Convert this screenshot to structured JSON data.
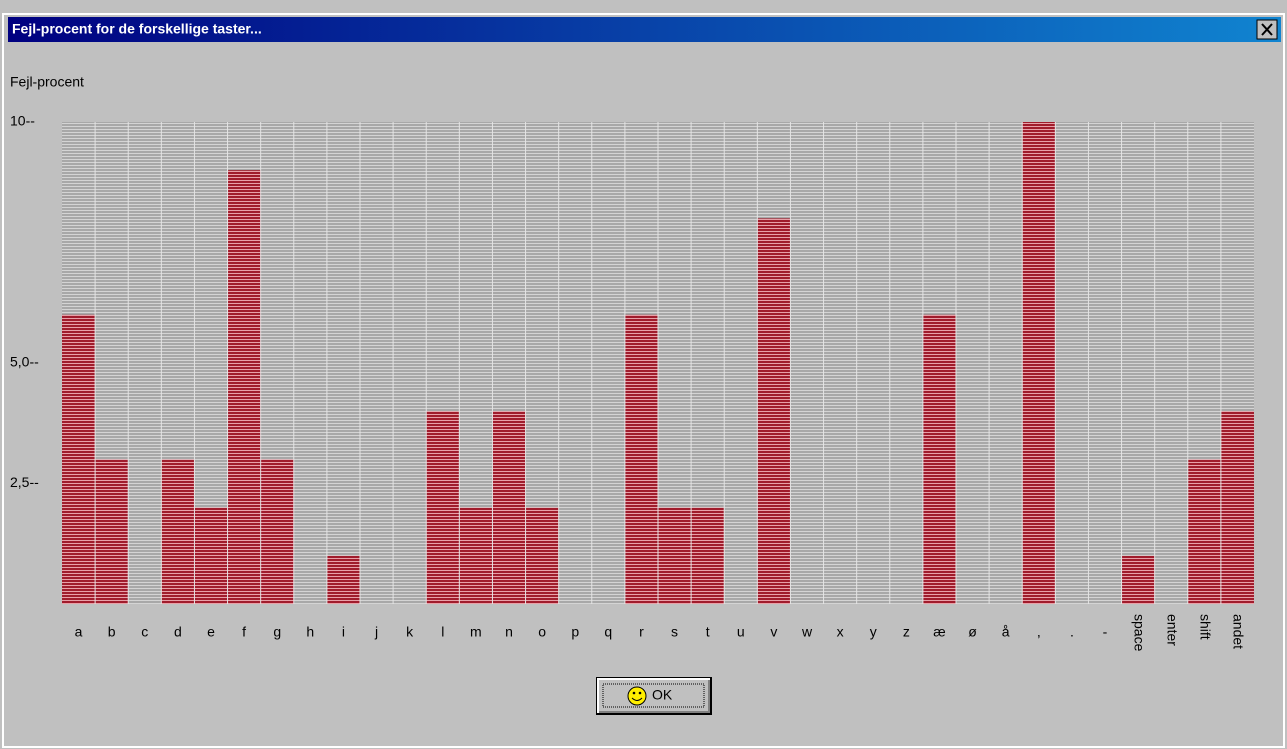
{
  "window": {
    "title": "Fejl-procent for de forskellige taster...",
    "ok_button": "OK"
  },
  "chart_data": {
    "type": "bar",
    "ylabel": "Fejl-procent",
    "categories": [
      "a",
      "b",
      "c",
      "d",
      "e",
      "f",
      "g",
      "h",
      "i",
      "j",
      "k",
      "l",
      "m",
      "n",
      "o",
      "p",
      "q",
      "r",
      "s",
      "t",
      "u",
      "v",
      "w",
      "x",
      "y",
      "z",
      "æ",
      "ø",
      "å",
      ",",
      ".",
      "-",
      "space",
      "enter",
      "shift",
      "andet"
    ],
    "values": [
      6,
      3,
      0,
      3,
      2,
      9,
      3,
      0,
      1,
      0,
      0,
      4,
      2,
      4,
      2,
      0,
      0,
      6,
      2,
      2,
      0,
      8,
      0,
      0,
      0,
      0,
      6,
      0,
      0,
      10,
      0,
      0,
      1,
      0,
      3,
      4
    ],
    "color": "#a01c2c",
    "ylim": [
      0,
      10
    ],
    "yticks": [
      {
        "value": 2.5,
        "label": "2,5--"
      },
      {
        "value": 5,
        "label": "5,0--"
      },
      {
        "value": 10,
        "label": "10--"
      }
    ]
  }
}
